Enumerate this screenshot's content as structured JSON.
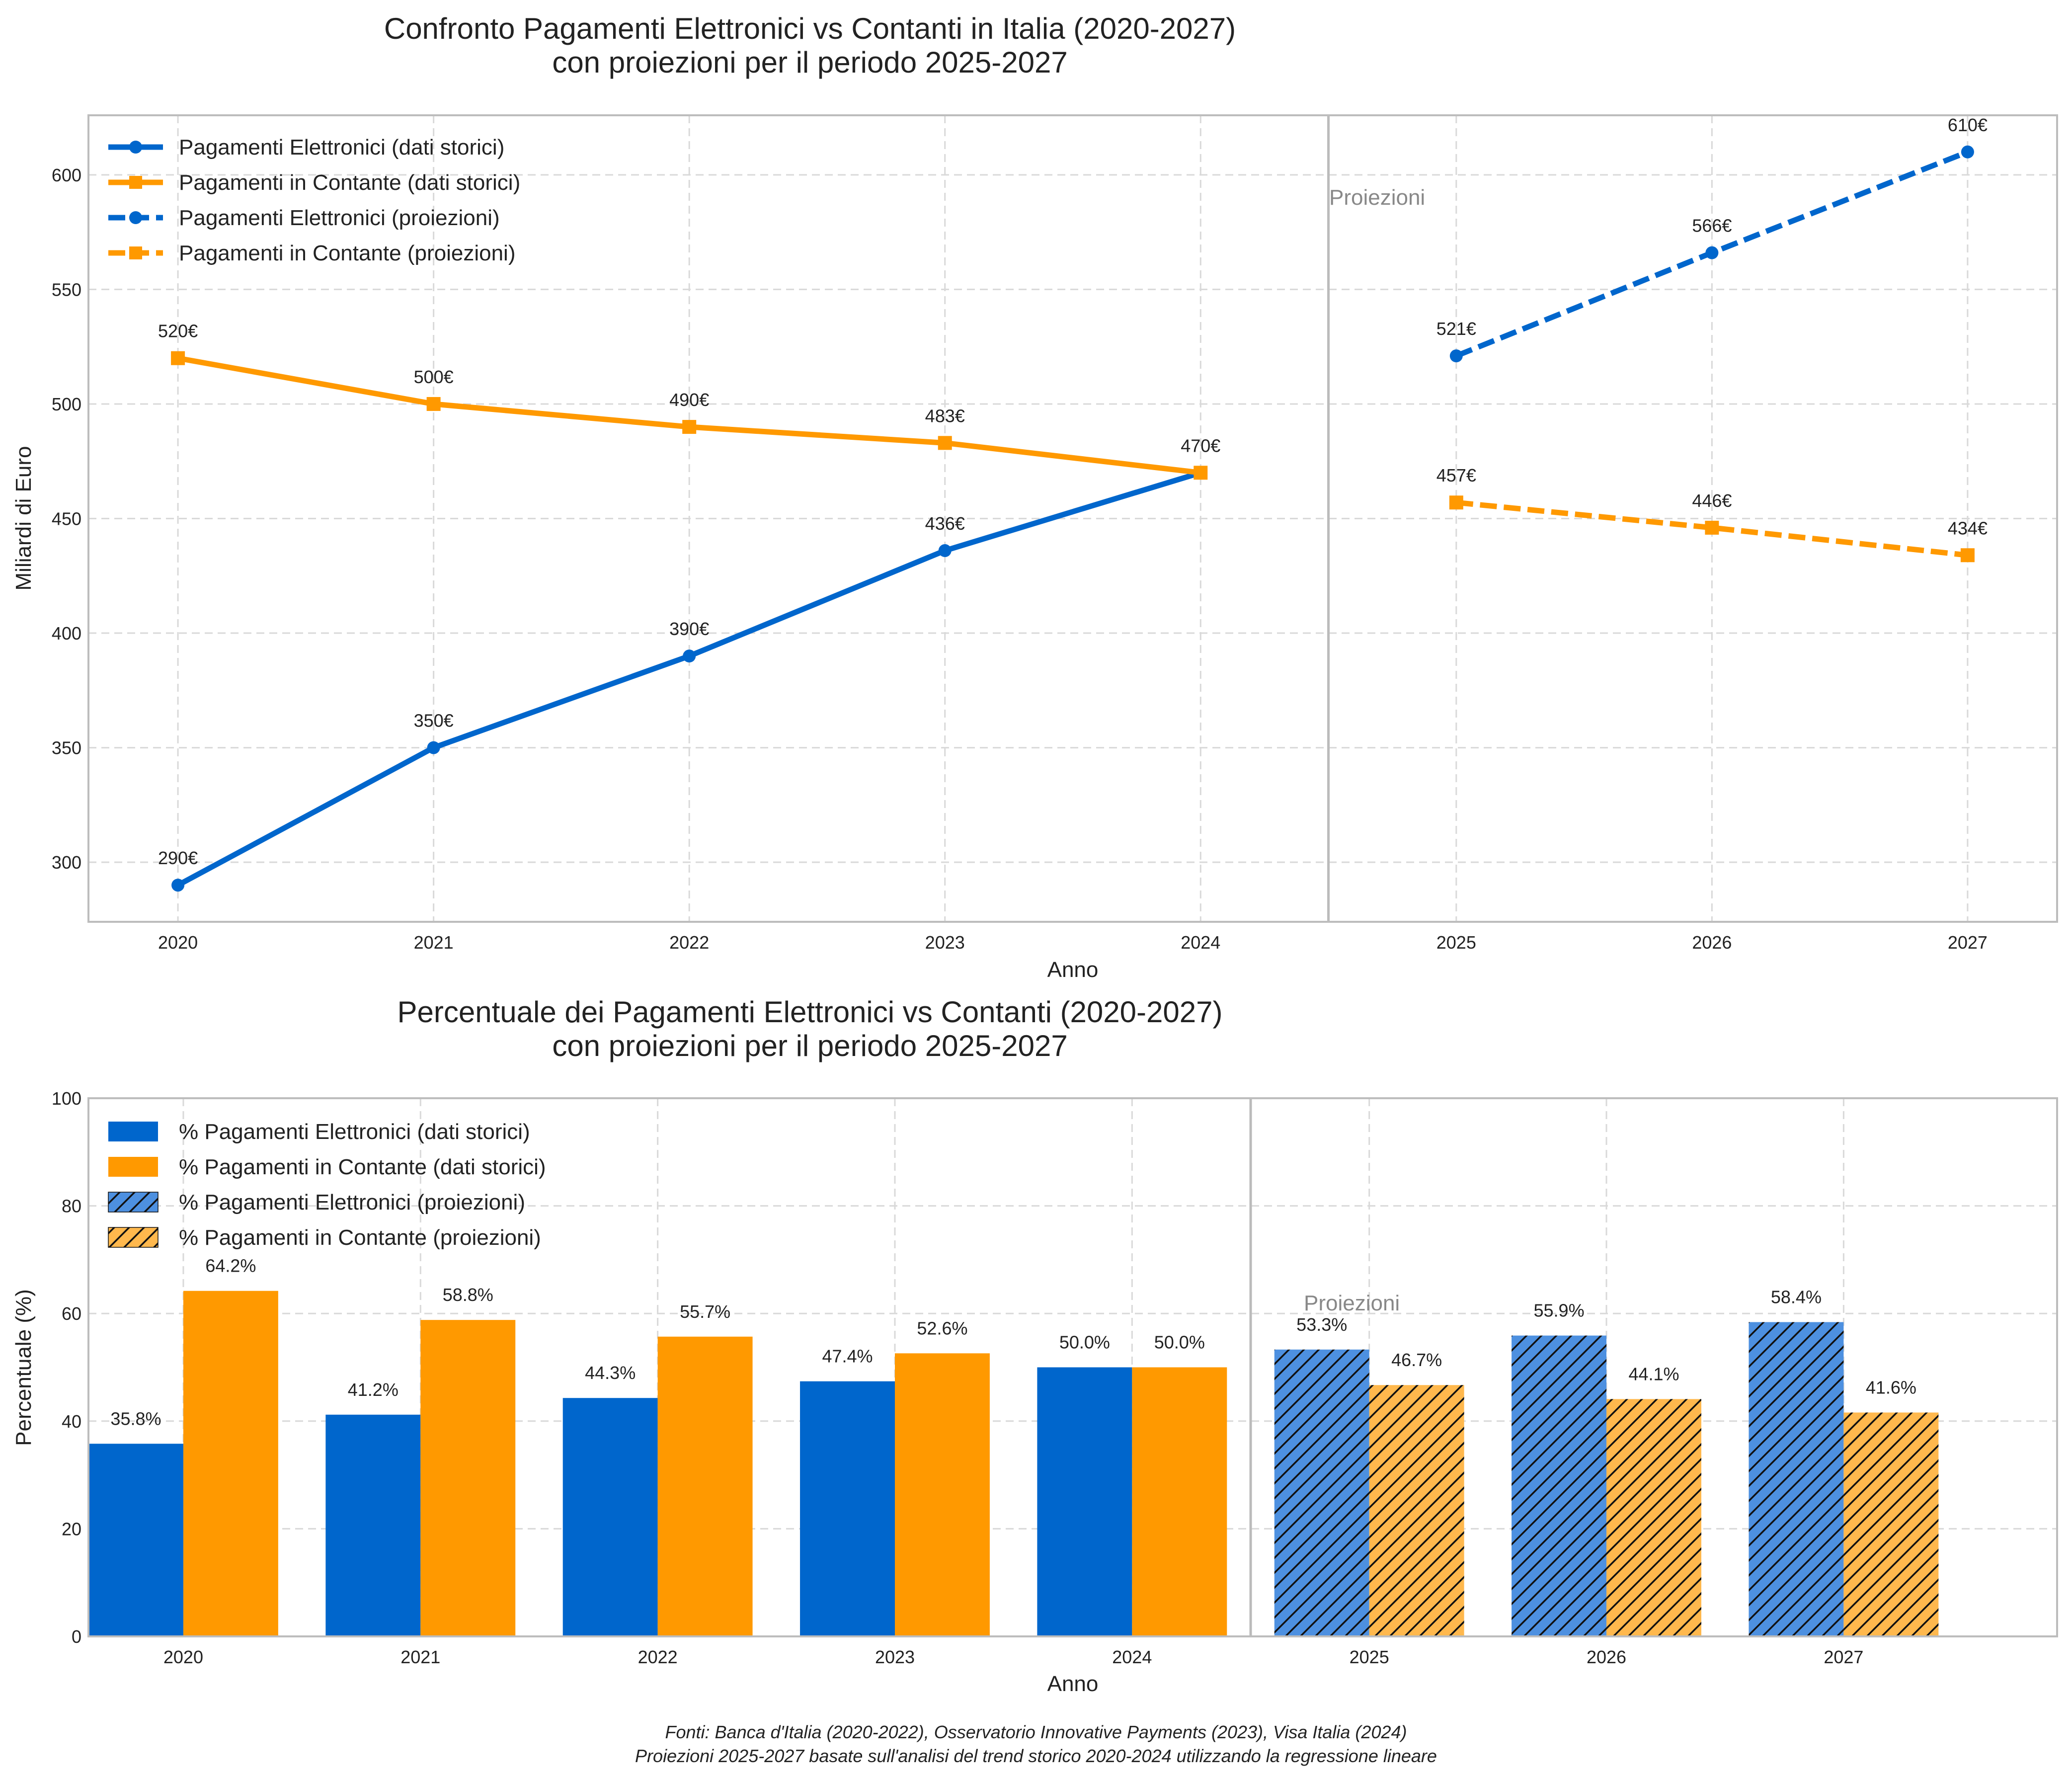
{
  "colors": {
    "electronic": "#0066cc",
    "cash": "#ff9900",
    "electronic_projection_bar": "#4d90e0",
    "cash_projection_bar": "#ffb84d",
    "divider": "#bbbbbb",
    "projection_text": "#888888"
  },
  "footer": {
    "line1": "Fonti: Banca d'Italia (2020-2022), Osservatorio Innovative Payments (2023), Visa Italia (2024)",
    "line2": "Proiezioni 2025-2027 basate sull'analisi del trend storico 2020-2024 utilizzando la regressione lineare"
  },
  "chart_data": [
    {
      "type": "line",
      "title": "Confronto Pagamenti Elettronici vs Contanti in Italia (2020-2027)",
      "subtitle": "con proiezioni per il periodo 2025-2027",
      "xlabel": "Anno",
      "ylabel": "Miliardi di Euro",
      "x": [
        2020,
        2021,
        2022,
        2023,
        2024,
        2025,
        2026,
        2027
      ],
      "xlim": [
        2019.65,
        2027.35
      ],
      "ylim": [
        274,
        626
      ],
      "yticks": [
        300,
        350,
        400,
        450,
        500,
        550,
        600
      ],
      "grid": true,
      "legend_position": "top-left",
      "projection_divider_x": 2024.5,
      "projection_label": "Proiezioni",
      "value_suffix": "€",
      "series": [
        {
          "name": "Pagamenti Elettronici (dati storici)",
          "color": "#0066cc",
          "marker": "circle",
          "dashed": false,
          "x": [
            2020,
            2021,
            2022,
            2023,
            2024
          ],
          "values": [
            290,
            350,
            390,
            436,
            470
          ],
          "labels": [
            "290€",
            "350€",
            "390€",
            "436€",
            "470€"
          ]
        },
        {
          "name": "Pagamenti in Contante (dati storici)",
          "color": "#ff9900",
          "marker": "square",
          "dashed": false,
          "x": [
            2020,
            2021,
            2022,
            2023,
            2024
          ],
          "values": [
            520,
            500,
            490,
            483,
            470
          ],
          "labels": [
            "520€",
            "500€",
            "490€",
            "483€",
            ""
          ]
        },
        {
          "name": "Pagamenti Elettronici (proiezioni)",
          "color": "#0066cc",
          "marker": "circle",
          "dashed": true,
          "x": [
            2025,
            2026,
            2027
          ],
          "values": [
            521,
            566,
            610
          ],
          "labels": [
            "521€",
            "566€",
            "610€"
          ]
        },
        {
          "name": "Pagamenti in Contante (proiezioni)",
          "color": "#ff9900",
          "marker": "square",
          "dashed": true,
          "x": [
            2025,
            2026,
            2027
          ],
          "values": [
            457,
            446,
            434
          ],
          "labels": [
            "457€",
            "446€",
            "434€"
          ]
        }
      ]
    },
    {
      "type": "bar",
      "title": "Percentuale dei Pagamenti Elettronici vs Contanti (2020-2027)",
      "subtitle": "con proiezioni per il periodo 2025-2027",
      "xlabel": "Anno",
      "ylabel": "Percentuale (%)",
      "categories": [
        "2020",
        "2021",
        "2022",
        "2023",
        "2024",
        "2025",
        "2026",
        "2027"
      ],
      "ylim": [
        0,
        100
      ],
      "yticks": [
        0,
        20,
        40,
        60,
        80,
        100
      ],
      "grid": true,
      "legend_position": "top-left",
      "projection_start_index": 5,
      "projection_label": "Proiezioni",
      "legend": [
        "% Pagamenti Elettronici (dati storici)",
        "% Pagamenti in Contante (dati storici)",
        "% Pagamenti Elettronici (proiezioni)",
        "% Pagamenti in Contante (proiezioni)"
      ],
      "series": [
        {
          "key": "electronic",
          "values": [
            35.8,
            41.2,
            44.3,
            47.4,
            50.0,
            53.3,
            55.9,
            58.4
          ],
          "labels": [
            "35.8%",
            "41.2%",
            "44.3%",
            "47.4%",
            "50.0%",
            "53.3%",
            "55.9%",
            "58.4%"
          ]
        },
        {
          "key": "cash",
          "values": [
            64.2,
            58.8,
            55.7,
            52.6,
            50.0,
            46.7,
            44.1,
            41.6
          ],
          "labels": [
            "64.2%",
            "58.8%",
            "55.7%",
            "52.6%",
            "50.0%",
            "46.7%",
            "44.1%",
            "41.6%"
          ]
        }
      ]
    }
  ]
}
